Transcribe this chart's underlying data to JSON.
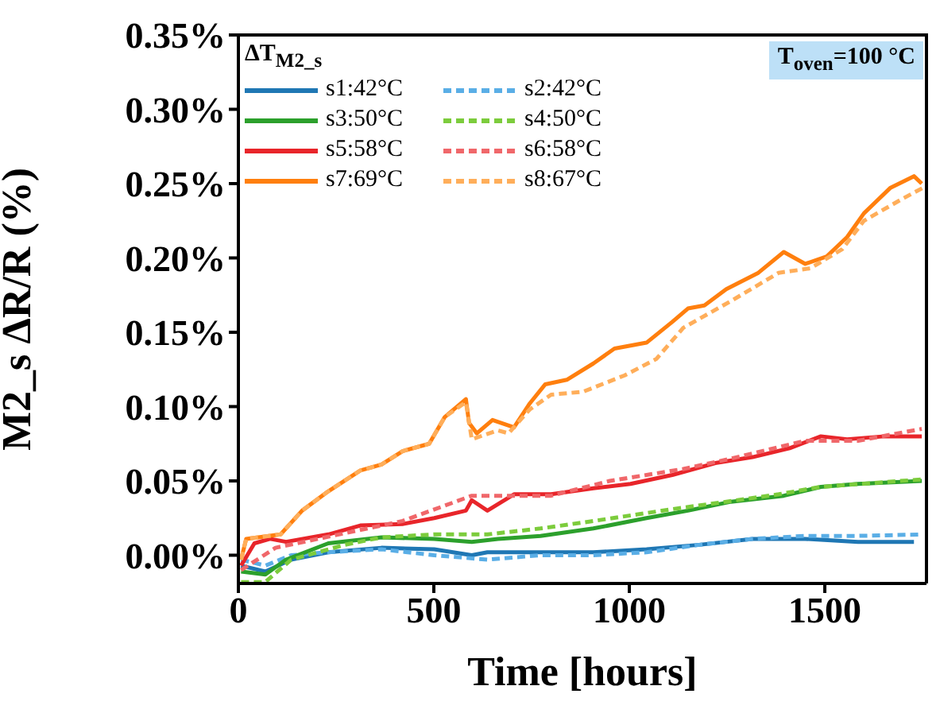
{
  "chart_data": {
    "type": "line",
    "xlabel": "Time [hours]",
    "ylabel": "M2_s ΔR/R (%)",
    "legend_title": "ΔT$_{M2_s}$",
    "legend": "top left",
    "marker": "none",
    "annotations": [
      "T$_{oven}$=100 °C"
    ],
    "xlim": [
      0,
      1760
    ],
    "xticks": [
      0,
      500,
      1000,
      1500
    ],
    "ylim": [
      -0.019,
      0.35
    ],
    "yticks": [
      {
        "value": 0,
        "label": "0.00%"
      },
      {
        "value": 0.05,
        "label": "0.05%"
      },
      {
        "value": 0.1,
        "label": "0.10%"
      },
      {
        "value": 0.15,
        "label": "0.15%"
      },
      {
        "value": 0.2,
        "label": "0.20%"
      },
      {
        "value": 0.25,
        "label": "0.25%"
      },
      {
        "value": 0.3,
        "label": "0.30%"
      },
      {
        "value": 0.35,
        "label": "0.35%"
      }
    ],
    "series": [
      {
        "name": "s1:42°C",
        "color": "#1f77b4",
        "line_style": "solid",
        "x": [
          7,
          69,
          135,
          230,
          366,
          501,
          597,
          637,
          773,
          908,
          1044,
          1179,
          1315,
          1450,
          1585,
          1728
        ],
        "values": [
          -0.007,
          -0.011,
          -0.003,
          0.002,
          0.005,
          0.004,
          0.0,
          0.002,
          0.002,
          0.002,
          0.004,
          0.007,
          0.011,
          0.011,
          0.009,
          0.009
        ]
      },
      {
        "name": "s2:42°C",
        "color": "#5aaee6",
        "line_style": "dashed",
        "x": [
          7,
          69,
          135,
          230,
          366,
          501,
          637,
          773,
          908,
          1044,
          1179,
          1315,
          1450,
          1585,
          1748
        ],
        "values": [
          -0.003,
          -0.007,
          0.0,
          0.002,
          0.004,
          0.0,
          -0.003,
          0.0,
          0.0,
          0.002,
          0.007,
          0.011,
          0.013,
          0.013,
          0.014
        ]
      },
      {
        "name": "s3:50°C",
        "color": "#2ca02c",
        "line_style": "solid",
        "x": [
          7,
          69,
          122,
          230,
          366,
          501,
          597,
          664,
          773,
          908,
          1044,
          1150,
          1260,
          1395,
          1490,
          1585,
          1748
        ],
        "values": [
          -0.011,
          -0.013,
          -0.003,
          0.008,
          0.012,
          0.011,
          0.009,
          0.011,
          0.013,
          0.018,
          0.025,
          0.03,
          0.036,
          0.04,
          0.046,
          0.048,
          0.05
        ]
      },
      {
        "name": "s4:50°C",
        "color": "#7ccc3c",
        "line_style": "dashed",
        "x": [
          7,
          69,
          135,
          272,
          366,
          501,
          637,
          773,
          908,
          1110,
          1248,
          1382,
          1490,
          1748
        ],
        "values": [
          -0.018,
          -0.018,
          -0.003,
          0.007,
          0.012,
          0.014,
          0.014,
          0.018,
          0.023,
          0.031,
          0.036,
          0.041,
          0.046,
          0.051
        ]
      },
      {
        "name": "s5:58°C",
        "color": "#e8252a",
        "line_style": "solid",
        "x": [
          7,
          41,
          81,
          122,
          230,
          312,
          420,
          501,
          582,
          597,
          637,
          705,
          800,
          908,
          1003,
          1110,
          1220,
          1315,
          1410,
          1490,
          1557,
          1653,
          1748
        ],
        "values": [
          -0.007,
          0.008,
          0.011,
          0.009,
          0.014,
          0.02,
          0.021,
          0.025,
          0.03,
          0.037,
          0.03,
          0.041,
          0.041,
          0.045,
          0.048,
          0.054,
          0.062,
          0.066,
          0.072,
          0.08,
          0.078,
          0.08,
          0.08
        ]
      },
      {
        "name": "s6:58°C",
        "color": "#f0676a",
        "line_style": "dashed",
        "x": [
          7,
          95,
          420,
          597,
          800,
          950,
          1138,
          1260,
          1450,
          1585,
          1748
        ],
        "values": [
          -0.01,
          0.005,
          0.023,
          0.04,
          0.04,
          0.05,
          0.058,
          0.065,
          0.077,
          0.077,
          0.085
        ]
      },
      {
        "name": "s7:69°C",
        "color": "#ff7f0e",
        "line_style": "solid",
        "x": [
          7,
          20,
          108,
          163,
          230,
          312,
          366,
          420,
          488,
          528,
          582,
          590,
          610,
          650,
          705,
          745,
          785,
          840,
          908,
          962,
          1044,
          1110,
          1150,
          1192,
          1248,
          1330,
          1395,
          1450,
          1505,
          1557,
          1600,
          1667,
          1728,
          1748
        ],
        "values": [
          -0.003,
          0.011,
          0.014,
          0.03,
          0.043,
          0.057,
          0.061,
          0.07,
          0.075,
          0.093,
          0.105,
          0.089,
          0.082,
          0.091,
          0.086,
          0.102,
          0.115,
          0.118,
          0.129,
          0.139,
          0.143,
          0.157,
          0.166,
          0.168,
          0.179,
          0.19,
          0.204,
          0.196,
          0.201,
          0.214,
          0.23,
          0.247,
          0.255,
          0.25
        ]
      },
      {
        "name": "s8:67°C",
        "color": "#ffae5a",
        "line_style": "dashed",
        "x": [
          7,
          20,
          108,
          163,
          230,
          312,
          366,
          420,
          488,
          528,
          582,
          597,
          663,
          691,
          745,
          800,
          882,
          988,
          1069,
          1138,
          1260,
          1382,
          1463,
          1545,
          1600,
          1700,
          1750
        ],
        "values": [
          -0.003,
          0.011,
          0.014,
          0.03,
          0.043,
          0.057,
          0.061,
          0.07,
          0.075,
          0.093,
          0.103,
          0.078,
          0.084,
          0.082,
          0.098,
          0.108,
          0.11,
          0.121,
          0.132,
          0.153,
          0.171,
          0.19,
          0.193,
          0.206,
          0.225,
          0.24,
          0.247
        ]
      }
    ]
  }
}
